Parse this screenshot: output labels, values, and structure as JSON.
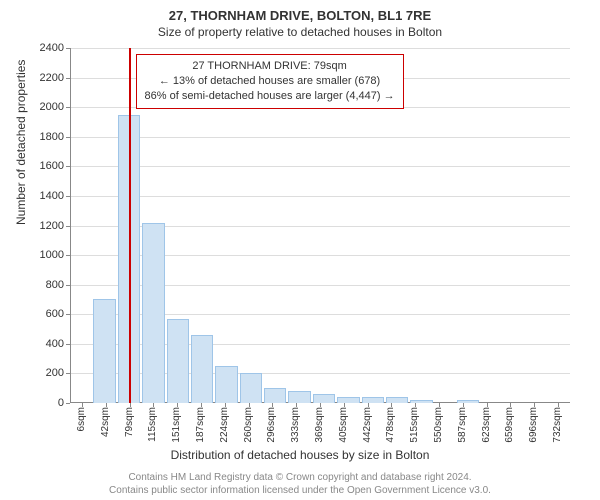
{
  "header": {
    "title": "27, THORNHAM DRIVE, BOLTON, BL1 7RE",
    "subtitle": "Size of property relative to detached houses in Bolton"
  },
  "axes": {
    "y_title": "Number of detached properties",
    "x_title": "Distribution of detached houses by size in Bolton"
  },
  "chart": {
    "type": "histogram",
    "bar_fill": "#cfe2f3",
    "bar_stroke": "#9fc5e8",
    "background_color": "#ffffff",
    "grid_color": "#dddddd",
    "axis_color": "#888888",
    "ylim": [
      0,
      2400
    ],
    "ytick_step": 200,
    "yticks": [
      0,
      200,
      400,
      600,
      800,
      1000,
      1200,
      1400,
      1600,
      1800,
      2000,
      2200,
      2400
    ],
    "x_categories": [
      "6sqm",
      "42sqm",
      "79sqm",
      "115sqm",
      "151sqm",
      "187sqm",
      "224sqm",
      "260sqm",
      "296sqm",
      "333sqm",
      "369sqm",
      "405sqm",
      "442sqm",
      "478sqm",
      "515sqm",
      "550sqm",
      "587sqm",
      "623sqm",
      "659sqm",
      "696sqm",
      "732sqm"
    ],
    "values": [
      0,
      700,
      1950,
      1220,
      570,
      460,
      250,
      200,
      100,
      80,
      60,
      40,
      40,
      40,
      20,
      0,
      20,
      0,
      0,
      0,
      0
    ],
    "x_label_fontsize": 10,
    "y_label_fontsize": 11
  },
  "marker": {
    "index": 2,
    "color": "#cc0000",
    "width": 2
  },
  "callout": {
    "border_color": "#cc0000",
    "lines": [
      "27 THORNHAM DRIVE: 79sqm",
      "← 13% of detached houses are smaller (678)",
      "86% of semi-detached houses are larger (4,447) →"
    ]
  },
  "footer": {
    "line1": "Contains HM Land Registry data © Crown copyright and database right 2024.",
    "line2": "Contains public sector information licensed under the Open Government Licence v3.0."
  }
}
